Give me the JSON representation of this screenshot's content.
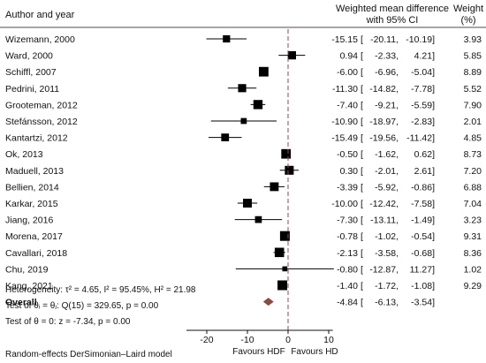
{
  "chart_data": {
    "type": "forest",
    "headers": {
      "study": "Author and year",
      "effect_line1": "Weighted mean difference",
      "effect_line2": "with 95% CI",
      "weight_line1": "Weight",
      "weight_line2": "(%)"
    },
    "studies": [
      {
        "label": "Wizemann, 2000",
        "est": -15.15,
        "lo": -20.11,
        "hi": -10.19,
        "weight": 3.93,
        "est_text": "-15.15",
        "ci_text": "[ -20.11,  -10.19]",
        "weight_text": "3.93"
      },
      {
        "label": "Ward, 2000",
        "est": 0.94,
        "lo": -2.33,
        "hi": 4.21,
        "weight": 5.85,
        "est_text": "0.94",
        "ci_text": "[   -2.33,    4.21]",
        "weight_text": "5.85"
      },
      {
        "label": "Schiffl, 2007",
        "est": -6.0,
        "lo": -6.96,
        "hi": -5.04,
        "weight": 8.89,
        "est_text": "-6.00",
        "ci_text": "[   -6.96,   -5.04]",
        "weight_text": "8.89"
      },
      {
        "label": "Pedrini, 2011",
        "est": -11.3,
        "lo": -14.82,
        "hi": -7.78,
        "weight": 5.52,
        "est_text": "-11.30",
        "ci_text": "[ -14.82,   -7.78]",
        "weight_text": "5.52"
      },
      {
        "label": "Grooteman, 2012",
        "est": -7.4,
        "lo": -9.21,
        "hi": -5.59,
        "weight": 7.9,
        "est_text": "-7.40",
        "ci_text": "[   -9.21,   -5.59]",
        "weight_text": "7.90"
      },
      {
        "label": "Stefánsson, 2012",
        "est": -10.9,
        "lo": -18.97,
        "hi": -2.83,
        "weight": 2.01,
        "est_text": "-10.90",
        "ci_text": "[ -18.97,   -2.83]",
        "weight_text": "2.01"
      },
      {
        "label": "Kantartzi, 2012",
        "est": -15.49,
        "lo": -19.56,
        "hi": -11.42,
        "weight": 4.85,
        "est_text": "-15.49",
        "ci_text": "[ -19.56,  -11.42]",
        "weight_text": "4.85"
      },
      {
        "label": "Ok, 2013",
        "est": -0.5,
        "lo": -1.62,
        "hi": 0.62,
        "weight": 8.73,
        "est_text": "-0.50",
        "ci_text": "[   -1.62,    0.62]",
        "weight_text": "8.73"
      },
      {
        "label": "Maduell, 2013",
        "est": 0.3,
        "lo": -2.01,
        "hi": 2.61,
        "weight": 7.2,
        "est_text": "0.30",
        "ci_text": "[   -2.01,    2.61]",
        "weight_text": "7.20"
      },
      {
        "label": "Bellien, 2014",
        "est": -3.39,
        "lo": -5.92,
        "hi": -0.86,
        "weight": 6.88,
        "est_text": "-3.39",
        "ci_text": "[   -5.92,   -0.86]",
        "weight_text": "6.88"
      },
      {
        "label": "Karkar, 2015",
        "est": -10.0,
        "lo": -12.42,
        "hi": -7.58,
        "weight": 7.04,
        "est_text": "-10.00",
        "ci_text": "[ -12.42,   -7.58]",
        "weight_text": "7.04"
      },
      {
        "label": "Jiang, 2016",
        "est": -7.3,
        "lo": -13.11,
        "hi": -1.49,
        "weight": 3.23,
        "est_text": "-7.30",
        "ci_text": "[ -13.11,   -1.49]",
        "weight_text": "3.23"
      },
      {
        "label": "Morena, 2017",
        "est": -0.78,
        "lo": -1.02,
        "hi": -0.54,
        "weight": 9.31,
        "est_text": "-0.78",
        "ci_text": "[   -1.02,   -0.54]",
        "weight_text": "9.31"
      },
      {
        "label": "Cavallari, 2018",
        "est": -2.13,
        "lo": -3.58,
        "hi": -0.68,
        "weight": 8.36,
        "est_text": "-2.13",
        "ci_text": "[   -3.58,   -0.68]",
        "weight_text": "8.36"
      },
      {
        "label": "Chu, 2019",
        "est": -0.8,
        "lo": -12.87,
        "hi": 11.27,
        "weight": 1.02,
        "est_text": "-0.80",
        "ci_text": "[ -12.87,   11.27]",
        "weight_text": "1.02"
      },
      {
        "label": "Kang, 2021",
        "est": -1.4,
        "lo": -1.72,
        "hi": -1.08,
        "weight": 9.29,
        "est_text": "-1.40",
        "ci_text": "[   -1.72,   -1.08]",
        "weight_text": "9.29"
      }
    ],
    "overall": {
      "label": "Overall",
      "est": -4.84,
      "lo": -6.13,
      "hi": -3.54,
      "est_text": "-4.84",
      "ci_text": "[   -6.13,   -3.54]"
    },
    "stats_lines": [
      "Heterogeneity: τ² = 4.65, I² = 95.45%, H² = 21.98",
      "Test of θᵢ = θⱼ: Q(15) = 329.65, p = 0.00",
      "Test of θ = 0: z = -7.34, p = 0.00"
    ],
    "x_axis": {
      "range": [
        -25,
        11
      ],
      "ticks": [
        -20,
        -10,
        0,
        10
      ],
      "tick_labels": [
        "-20",
        "-10",
        "0",
        "10"
      ],
      "reference_line": 0,
      "left_label": "Favours HDF",
      "right_label": "Favours HD"
    },
    "footnote": "Random-effects DerSimonian–Laird model",
    "colors": {
      "box": "#000000",
      "ci_line": "#000000",
      "diamond": "#8b4a3c",
      "reference_line": "#b03a4a",
      "text": "#111111"
    }
  }
}
